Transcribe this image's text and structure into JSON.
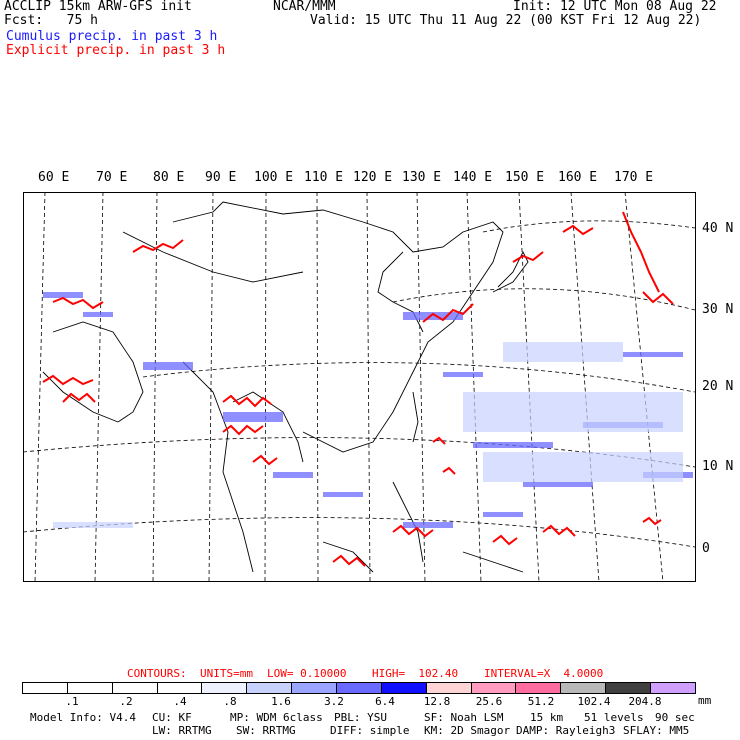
{
  "header": {
    "model_title": "ACCLIP 15km ARW-GFS init",
    "center": "NCAR/MMM",
    "init": "Init: 12 UTC Mon 08 Aug 22",
    "fcst": "Fcst:   75 h",
    "valid": "Valid: 15 UTC Thu 11 Aug 22 (00 KST Fri 12 Aug 22)",
    "legend_cumulus": "Cumulus precip. in past 3 h",
    "legend_explicit": "Explicit precip. in past 3 h"
  },
  "map": {
    "lon_labels": [
      "60 E",
      "70 E",
      "80 E",
      "90 E",
      "100 E",
      "110 E",
      "120 E",
      "130 E",
      "140 E",
      "150 E",
      "160 E",
      "170 E"
    ],
    "lat_labels": [
      "40 N",
      "30 N",
      "20 N",
      "10 N",
      "0"
    ]
  },
  "contours": {
    "label": "CONTOURS:",
    "units": "UNITS=mm",
    "low": "LOW= 0.10000",
    "high": "HIGH=  102.40",
    "interval": "INTERVAL=X  4.0000"
  },
  "colorbar": {
    "colors": [
      "#ffffff",
      "#ffffff",
      "#ffffff",
      "#ffffff",
      "#eef2ff",
      "#c8d2ff",
      "#9aa6ff",
      "#6a6aff",
      "#1010ff",
      "#ffd4d4",
      "#ff9cbf",
      "#ff6da0",
      "#b8b8b8",
      "#404040",
      "#cfa0ff"
    ],
    "ticks": [
      ".1",
      ".2",
      ".4",
      ".8",
      "1.6",
      "3.2",
      "6.4",
      "12.8",
      "25.6",
      "51.2",
      "102.4",
      "204.8"
    ],
    "unit": "mm"
  },
  "footer": {
    "line1": [
      "Model Info: V4.4",
      "CU: KF",
      "MP: WDM 6class",
      "PBL: YSU",
      "SF: Noah LSM",
      "15 km",
      "51 levels",
      "90 sec"
    ],
    "line2": [
      "LW: RRTMG",
      "SW: RRTMG",
      "DIFF: simple",
      "KM: 2D Smagor",
      "DAMP: Rayleigh3",
      "SFLAY: MM5"
    ]
  },
  "colors": {
    "cumulus": "#1a1aff",
    "explicit": "#ff0000"
  }
}
